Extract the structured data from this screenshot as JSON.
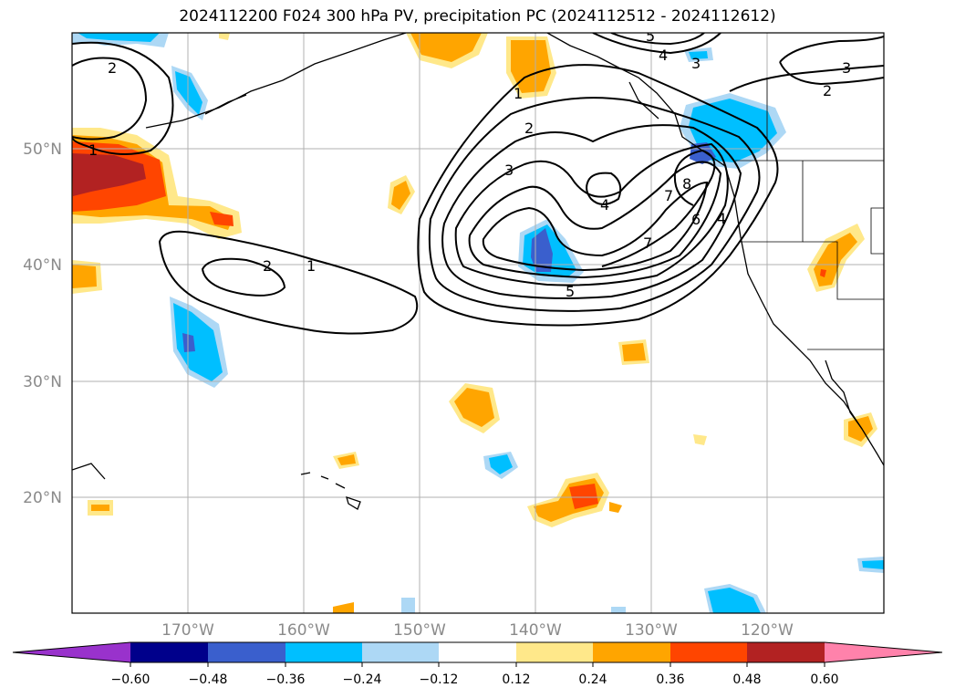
{
  "title": "2024112200 F024 300 hPa PV, precipitation PC (2024112512 - 2024112612)",
  "map": {
    "lon_labels": [
      "170°W",
      "160°W",
      "150°W",
      "140°W",
      "130°W",
      "120°W"
    ],
    "lat_labels": [
      "50°N",
      "40°N",
      "30°N",
      "20°N"
    ],
    "pv_contour_labels": [
      "1",
      "2",
      "3",
      "4",
      "5",
      "6",
      "7",
      "8"
    ]
  },
  "colorbar": {
    "tick_labels": [
      "−0.60",
      "−0.48",
      "−0.36",
      "−0.24",
      "−0.12",
      "0.12",
      "0.24",
      "0.36",
      "0.48",
      "0.60"
    ],
    "colors": [
      "#9932cc",
      "#00008b",
      "#3a5fcd",
      "#00bfff",
      "#add8f5",
      "#ffffff",
      "#ffe88a",
      "#ffa500",
      "#ff4500",
      "#b22222",
      "#ff82ab"
    ]
  },
  "colors": {
    "pos_light": "#ffe88a",
    "pos_orange": "#ffa500",
    "pos_red": "#ff4500",
    "pos_dark": "#b22222",
    "neg_light": "#add8f5",
    "neg_blue": "#00bfff",
    "neg_mid": "#3a5fcd"
  }
}
